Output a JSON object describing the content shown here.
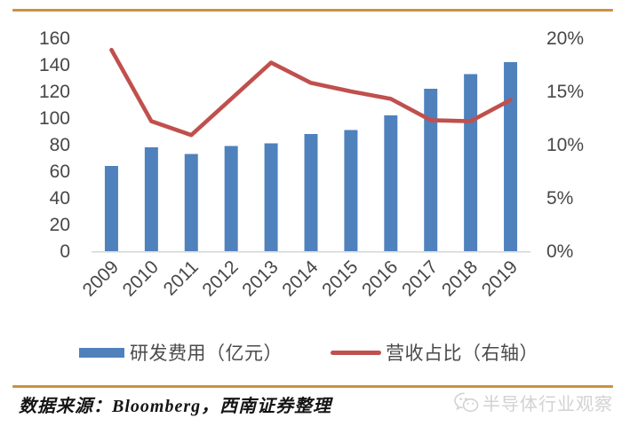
{
  "chart_data": {
    "type": "bar",
    "categories": [
      "2009",
      "2010",
      "2011",
      "2012",
      "2013",
      "2014",
      "2015",
      "2016",
      "2017",
      "2018",
      "2019"
    ],
    "series": [
      {
        "name": "研发费用（亿元）",
        "type": "bar",
        "axis": "left",
        "values": [
          64,
          78,
          73,
          79,
          81,
          88,
          91,
          102,
          122,
          133,
          142
        ]
      },
      {
        "name": "营收占比（右轴）",
        "type": "line",
        "axis": "right",
        "values": [
          18.9,
          12.2,
          10.9,
          14.3,
          17.7,
          15.8,
          15.0,
          14.3,
          12.3,
          12.2,
          14.2
        ]
      }
    ],
    "title": "",
    "xlabel": "",
    "ylabel": "",
    "left_axis": {
      "min": 0,
      "max": 160,
      "step": 20,
      "ticks": [
        "0",
        "20",
        "40",
        "60",
        "80",
        "100",
        "120",
        "140",
        "160"
      ]
    },
    "right_axis": {
      "min": 0,
      "max": 20,
      "step": 5,
      "ticks": [
        "0%",
        "5%",
        "10%",
        "15%",
        "20%"
      ]
    },
    "grid": false,
    "legend_position": "bottom",
    "x_labels_rotation_deg": -45
  },
  "legend": {
    "bar_label": "研发费用（亿元）",
    "line_label": "营收占比（右轴）"
  },
  "footer": {
    "source_text": "数据来源：Bloomberg，西南证券整理",
    "watermark_text": "半导体行业观察",
    "watermark_icon": "wechat-icon"
  },
  "colors": {
    "bar": "#4f81bd",
    "line": "#c0504d",
    "divider": "#cc9140",
    "axis_line": "#d9d9d9",
    "tick_text": "#474747",
    "watermark": "#d2d2d2"
  }
}
